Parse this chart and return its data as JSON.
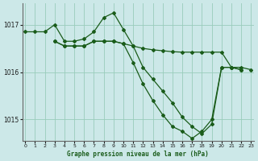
{
  "background_color": "#cce8e8",
  "plot_bg_color": "#cce8e8",
  "grid_color": "#99ccbb",
  "line_color": "#1a5c1a",
  "xlabel": "Graphe pression niveau de la mer (hPa)",
  "yticks": [
    1015,
    1016,
    1017
  ],
  "xticks": [
    0,
    1,
    2,
    3,
    4,
    5,
    6,
    7,
    8,
    9,
    10,
    11,
    12,
    13,
    14,
    15,
    16,
    17,
    18,
    19,
    20,
    21,
    22,
    23
  ],
  "xlim": [
    -0.3,
    23.3
  ],
  "ylim": [
    1014.55,
    1017.45
  ],
  "series": [
    {
      "x": [
        0,
        1,
        2,
        3,
        4,
        5,
        6,
        7,
        8,
        9,
        10,
        11,
        12,
        13,
        14,
        15,
        16,
        17,
        18,
        19,
        20,
        21,
        22
      ],
      "y": [
        1016.85,
        1016.85,
        1016.85,
        1017.0,
        1016.65,
        1016.65,
        1016.7,
        1016.85,
        1017.15,
        1017.25,
        1016.9,
        1016.55,
        1016.1,
        1015.85,
        1015.6,
        1015.35,
        1015.05,
        1014.85,
        1014.7,
        1014.9,
        1016.1,
        1016.1,
        1016.05
      ]
    },
    {
      "x": [
        3,
        4,
        5,
        6,
        7,
        8,
        9,
        10,
        11,
        12,
        13,
        14,
        15,
        16,
        17,
        18,
        19,
        20,
        21,
        22,
        23
      ],
      "y": [
        1016.65,
        1016.55,
        1016.55,
        1016.55,
        1016.65,
        1016.65,
        1016.65,
        1016.6,
        1016.55,
        1016.5,
        1016.47,
        1016.45,
        1016.43,
        1016.42,
        1016.42,
        1016.42,
        1016.42,
        1016.42,
        1016.1,
        1016.1,
        1016.05
      ]
    },
    {
      "x": [
        3,
        4,
        5,
        6,
        7,
        8,
        9,
        10,
        11,
        12,
        13,
        14,
        15,
        16,
        17,
        18,
        19,
        20,
        21,
        22
      ],
      "y": [
        1016.65,
        1016.55,
        1016.55,
        1016.55,
        1016.65,
        1016.65,
        1016.65,
        1016.6,
        1016.2,
        1015.75,
        1015.4,
        1015.1,
        1014.85,
        1014.75,
        1014.6,
        1014.75,
        1015.0,
        1016.1,
        1016.1,
        1016.05
      ]
    }
  ]
}
